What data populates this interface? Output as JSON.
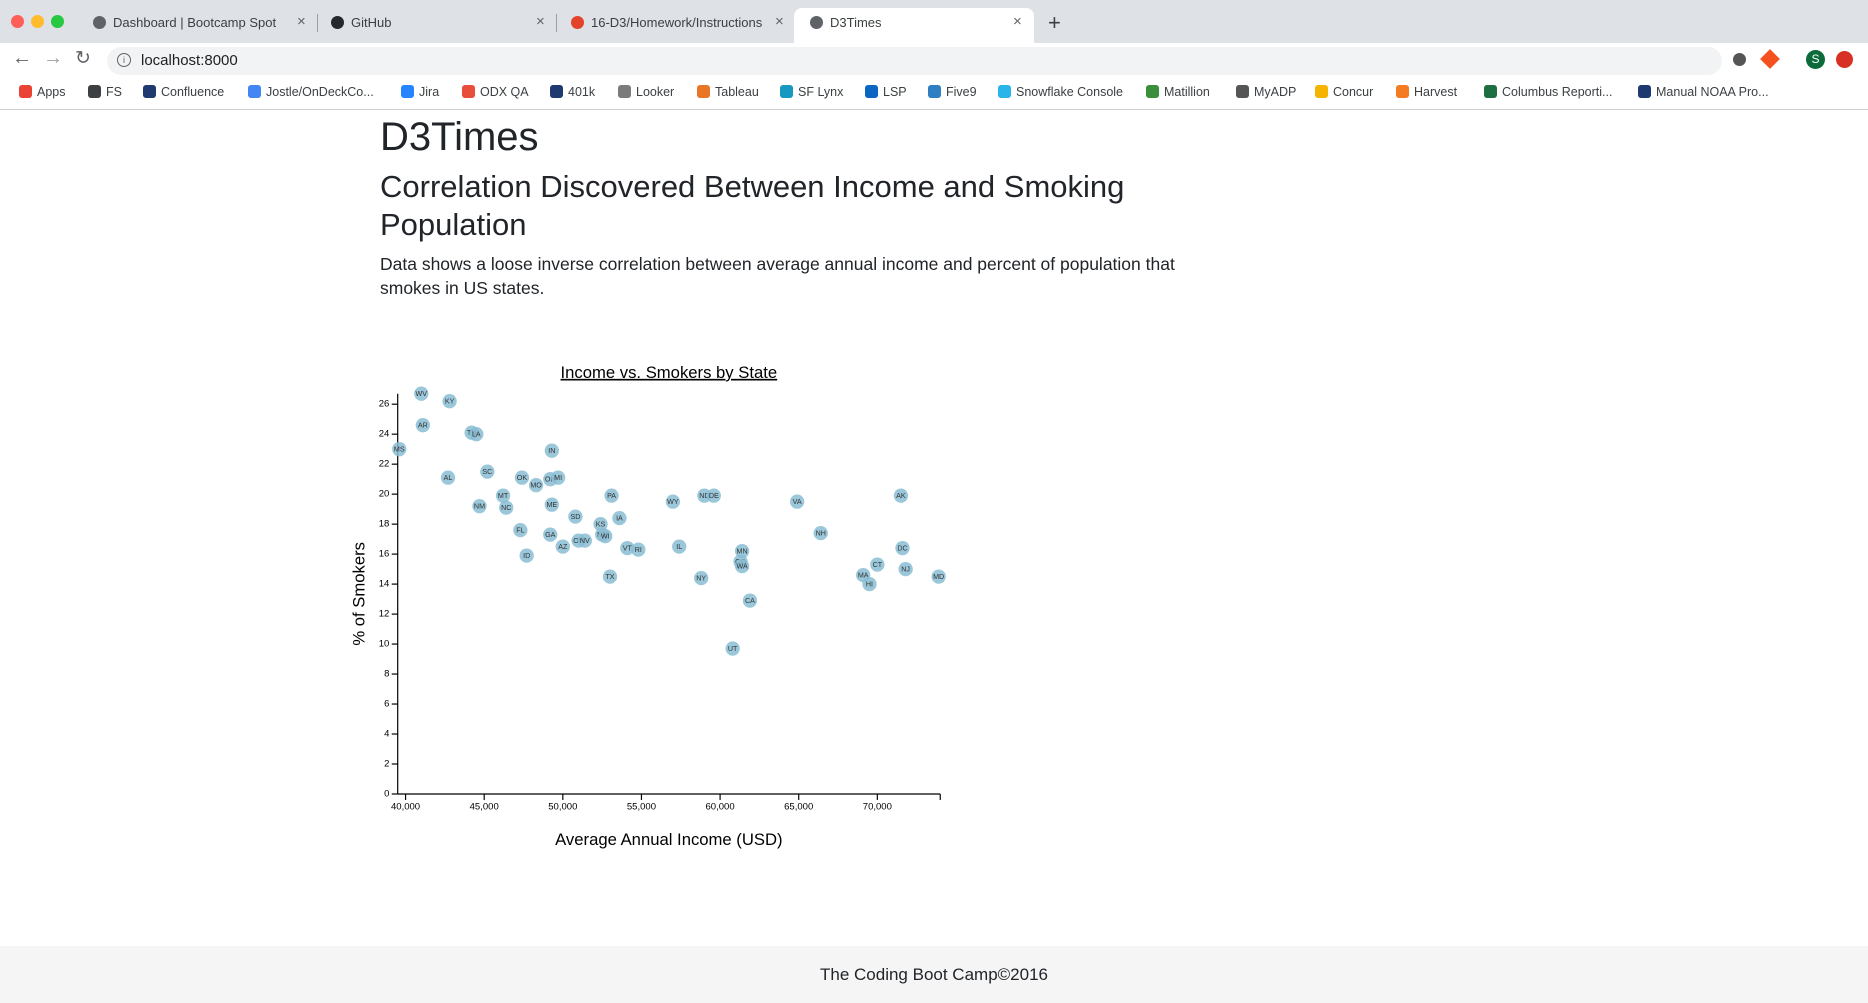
{
  "browser": {
    "tabs": [
      "Dashboard | Bootcamp Spot",
      "GitHub",
      "16-D3/Homework/Instructions",
      "D3Times"
    ],
    "url": "localhost:8000",
    "bookmarks": [
      "Apps",
      "FS",
      "Confluence",
      "Jostle/OnDeckCo...",
      "Jira",
      "ODX QA",
      "401k",
      "Looker",
      "Tableau",
      "SF Lynx",
      "LSP",
      "Five9",
      "Snowflake Console",
      "Matillion",
      "MyADP",
      "Concur",
      "Harvest",
      "Columbus Reporti...",
      "Manual NOAA Pro..."
    ]
  },
  "page": {
    "title": "D3Times",
    "headline": "Correlation Discovered Between Income and Smoking Population",
    "description": "Data shows a loose inverse correlation between average annual income and percent of population that smokes in US states."
  },
  "chart_data": {
    "type": "scatter",
    "title": "Income vs. Smokers by State",
    "x_label": "Average Annual Income (USD)",
    "y_label": "% of Smokers",
    "color": "#89bdd3",
    "labels": [
      "WV",
      "KY",
      "AR",
      "TN",
      "LA",
      "MS",
      "AL",
      "SC",
      "OK",
      "MO",
      "OH",
      "MI",
      "IN",
      "MT",
      "NC",
      "NM",
      "ME",
      "PA",
      "WY",
      "ND",
      "DE",
      "VA",
      "AK",
      "SD",
      "IA",
      "KS",
      "NE",
      "WI",
      "FL",
      "GA",
      "NH",
      "OR",
      "NV",
      "AZ",
      "VT",
      "RI",
      "IL",
      "MN",
      "DC",
      "ID",
      "CO",
      "WA",
      "CT",
      "NJ",
      "MA",
      "HI",
      "MD",
      "TX",
      "NY",
      "CA",
      "UT"
    ],
    "x": [
      41000,
      42800,
      41100,
      44200,
      44500,
      39600,
      42700,
      45200,
      47400,
      48300,
      49200,
      49700,
      49300,
      46200,
      46400,
      44700,
      49300,
      53100,
      57000,
      59000,
      59600,
      64900,
      71500,
      50800,
      53600,
      52400,
      52500,
      52700,
      47300,
      49200,
      66400,
      51000,
      51400,
      50000,
      54100,
      54800,
      57400,
      61400,
      71600,
      47700,
      61300,
      61400,
      70000,
      71800,
      69100,
      69500,
      73900,
      53000,
      58800,
      61900,
      60800
    ],
    "values": [
      26.7,
      26.2,
      24.6,
      24.1,
      24.0,
      23.0,
      21.1,
      21.5,
      21.1,
      20.6,
      21.0,
      21.1,
      22.9,
      19.9,
      19.1,
      19.2,
      19.3,
      19.9,
      19.5,
      19.9,
      19.9,
      19.5,
      19.9,
      18.5,
      18.4,
      18.0,
      17.3,
      17.2,
      17.6,
      17.3,
      17.4,
      16.9,
      16.9,
      16.5,
      16.4,
      16.3,
      16.5,
      16.2,
      16.4,
      15.9,
      15.5,
      15.2,
      15.3,
      15.0,
      14.6,
      14.0,
      14.5,
      14.5,
      14.4,
      12.9,
      9.7
    ],
    "xlim": [
      39500,
      74000
    ],
    "ylim": [
      0,
      26.7
    ],
    "xticks": [
      {
        "value": 40000,
        "label": "40,000"
      },
      {
        "value": 45000,
        "label": "45,000"
      },
      {
        "value": 50000,
        "label": "50,000"
      },
      {
        "value": 55000,
        "label": "55,000"
      },
      {
        "value": 60000,
        "label": "60,000"
      },
      {
        "value": 65000,
        "label": "65,000"
      },
      {
        "value": 70000,
        "label": "70,000"
      }
    ],
    "yticks": [
      0,
      2,
      4,
      6,
      8,
      10,
      12,
      14,
      16,
      18,
      20,
      22,
      24,
      26
    ]
  },
  "footer": {
    "text": "The Coding Boot Camp©2016"
  }
}
